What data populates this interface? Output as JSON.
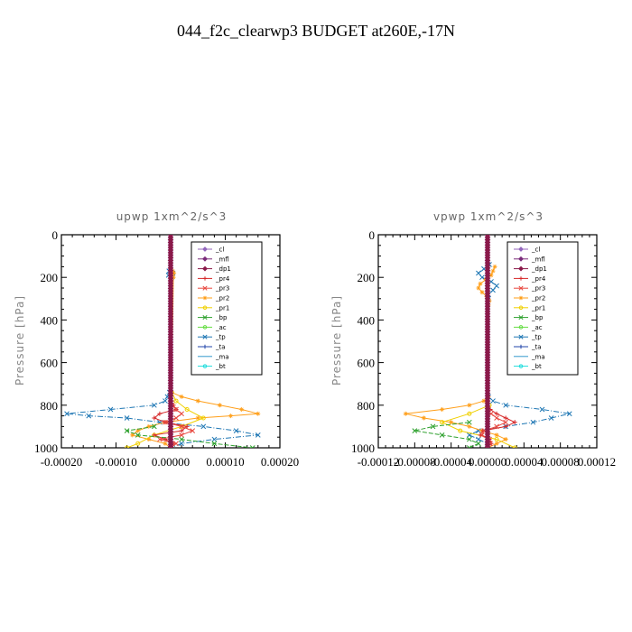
{
  "figure": {
    "title": "044_f2c_clearwp3  BUDGET at260E,-17N"
  },
  "legend_entries": [
    {
      "name": "_cl",
      "color": "#9467bd",
      "marker": "diamond"
    },
    {
      "name": "_mfl",
      "color": "#7b2d7b",
      "marker": "diamond"
    },
    {
      "name": "_dp1",
      "color": "#8b1a4a",
      "marker": "diamond"
    },
    {
      "name": "_pr4",
      "color": "#d62728",
      "marker": "plus"
    },
    {
      "name": "_pr3",
      "color": "#e8483f",
      "marker": "x"
    },
    {
      "name": "_pr2",
      "color": "#ff9f1a",
      "marker": "star"
    },
    {
      "name": "_pr1",
      "color": "#f0d000",
      "marker": "circle"
    },
    {
      "name": "_bp",
      "color": "#2ca02c",
      "marker": "x"
    },
    {
      "name": "_ac",
      "color": "#66dd44",
      "marker": "circle"
    },
    {
      "name": "_tp",
      "color": "#1f77b4",
      "marker": "x"
    },
    {
      "name": "_ta",
      "color": "#2244aa",
      "marker": "plus"
    },
    {
      "name": "_ma",
      "color": "#3399cc",
      "marker": "none"
    },
    {
      "name": "_bt",
      "color": "#22dddd",
      "marker": "circle"
    }
  ],
  "chart_data": [
    {
      "type": "line",
      "title": "upwp   1xm^2/s^3",
      "ylabel": "Pressure [hPa]",
      "xlabel": "",
      "xlim": [
        -0.0002,
        0.0002
      ],
      "ylim": [
        1000,
        0
      ],
      "y_inverted": true,
      "xtick_labels": [
        "-0.00020",
        "-0.00010",
        "0.00000",
        "0.00010",
        "0.00020"
      ],
      "xtick_values": [
        -0.0002,
        -0.0001,
        0,
        0.0001,
        0.0002
      ],
      "ytick_labels": [
        "0",
        "200",
        "400",
        "600",
        "800",
        "1000"
      ],
      "ytick_values": [
        0,
        200,
        400,
        600,
        800,
        1000
      ],
      "legend": "top-right",
      "series": [
        {
          "name": "_tp",
          "y": [
            170,
            180,
            190,
            200,
            740,
            760,
            780,
            800,
            820,
            840,
            850,
            860,
            880,
            900,
            920,
            940,
            960,
            980,
            1000
          ],
          "x": [
            -3e-06,
            4e-06,
            -4e-06,
            2e-06,
            -2e-06,
            -6e-06,
            -1e-05,
            -3e-05,
            -0.00011,
            -0.00019,
            -0.00015,
            -8e-05,
            -2e-05,
            6e-05,
            0.00012,
            0.00016,
            8e-05,
            2e-05,
            0
          ]
        },
        {
          "name": "_pr2",
          "y": [
            170,
            180,
            190,
            200,
            740,
            760,
            780,
            800,
            820,
            840,
            850,
            860,
            880,
            900,
            920,
            940,
            960,
            980,
            1000
          ],
          "x": [
            4e-06,
            6e-06,
            3e-06,
            5e-06,
            2e-06,
            2e-05,
            5e-05,
            9e-05,
            0.00013,
            0.00016,
            0.00011,
            5e-05,
            -1e-05,
            -4e-05,
            -6e-05,
            -7e-05,
            -4e-05,
            -1e-05,
            0
          ]
        },
        {
          "name": "_pr1",
          "y": [
            740,
            780,
            820,
            860,
            900,
            940,
            980,
            1000
          ],
          "x": [
            2e-06,
            1e-05,
            3e-05,
            6e-05,
            2e-05,
            -3e-05,
            -6e-05,
            -8e-05
          ]
        },
        {
          "name": "_pr4",
          "y": [
            780,
            800,
            820,
            840,
            860,
            880,
            900,
            920,
            940,
            960,
            980,
            1000
          ],
          "x": [
            2e-06,
            5e-06,
            1e-05,
            -2e-05,
            -3e-05,
            -1e-05,
            3e-05,
            2e-05,
            -3e-05,
            -1e-05,
            5e-06,
            0
          ]
        },
        {
          "name": "_pr3",
          "y": [
            800,
            820,
            840,
            860,
            880,
            900,
            920,
            940,
            960,
            980,
            1000
          ],
          "x": [
            3e-06,
            1e-05,
            2e-05,
            1e-05,
            -1e-05,
            2e-05,
            4e-05,
            2e-05,
            -2e-05,
            1e-05,
            0
          ]
        },
        {
          "name": "_bp",
          "y": [
            900,
            920,
            940,
            960,
            980,
            1000
          ],
          "x": [
            -3e-05,
            -8e-05,
            -6e-05,
            2e-05,
            8e-05,
            0.00015
          ]
        },
        {
          "name": "_cl",
          "y": [
            0,
            1000
          ],
          "x": [
            0,
            0
          ]
        },
        {
          "name": "_mfl",
          "y": [
            0,
            1000
          ],
          "x": [
            0,
            0
          ]
        },
        {
          "name": "_dp1",
          "y": [
            0,
            1000
          ],
          "x": [
            0,
            0
          ]
        }
      ]
    },
    {
      "type": "line",
      "title": "vpwp   1xm^2/s^3",
      "ylabel": "Pressure [hPa]",
      "xlabel": "",
      "xlim": [
        -0.00012,
        0.00012
      ],
      "ylim": [
        1000,
        0
      ],
      "y_inverted": true,
      "xtick_labels": [
        "-0.00012",
        "-0.00008",
        "-0.00004",
        "0.00000",
        "0.00004",
        "0.00008",
        "0.00012"
      ],
      "xtick_values": [
        -0.00012,
        -8e-05,
        -4e-05,
        0,
        4e-05,
        8e-05,
        0.00012
      ],
      "ytick_labels": [
        "0",
        "200",
        "400",
        "600",
        "800",
        "1000"
      ],
      "ytick_values": [
        0,
        200,
        400,
        600,
        800,
        1000
      ],
      "legend": "top-right",
      "series": [
        {
          "name": "_tp",
          "y": [
            140,
            160,
            180,
            200,
            220,
            240,
            260,
            280,
            300,
            760,
            780,
            800,
            820,
            840,
            860,
            880,
            900,
            920,
            940,
            960,
            980,
            1000
          ],
          "x": [
            2e-06,
            -4e-06,
            -1e-05,
            -6e-06,
            4e-06,
            1e-05,
            6e-06,
            1e-06,
            1e-06,
            1e-06,
            6e-06,
            2e-05,
            6e-05,
            9e-05,
            7e-05,
            5e-05,
            2e-05,
            -1e-05,
            -2e-05,
            -1e-05,
            0,
            0
          ]
        },
        {
          "name": "_pr2",
          "y": [
            150,
            170,
            190,
            210,
            230,
            250,
            270,
            290,
            310,
            330,
            760,
            780,
            800,
            820,
            840,
            860,
            880,
            900,
            920,
            940,
            960,
            980,
            1000
          ],
          "x": [
            8e-06,
            6e-06,
            4e-06,
            -2e-06,
            -8e-06,
            -1e-05,
            -6e-06,
            -1e-06,
            2e-06,
            1e-06,
            1e-06,
            -4e-06,
            -2e-05,
            -5e-05,
            -9e-05,
            -7e-05,
            -4e-05,
            -2e-05,
            -6e-06,
            1e-05,
            2e-05,
            1e-05,
            0
          ]
        },
        {
          "name": "_pr1",
          "y": [
            800,
            840,
            880,
            920,
            960,
            1000
          ],
          "x": [
            2e-06,
            -2e-05,
            -5e-05,
            -3e-05,
            1e-05,
            3e-05
          ]
        },
        {
          "name": "_pr4",
          "y": [
            820,
            840,
            860,
            880,
            900,
            920,
            940,
            960,
            980,
            1000
          ],
          "x": [
            3e-06,
            1e-05,
            2e-05,
            3e-05,
            2e-05,
            -5e-06,
            -8e-06,
            2e-06,
            4e-06,
            0
          ]
        },
        {
          "name": "_pr3",
          "y": [
            840,
            860,
            880,
            900,
            920,
            940,
            960,
            980,
            1000
          ],
          "x": [
            4e-06,
            1e-05,
            2e-05,
            1e-05,
            -4e-06,
            -6e-06,
            2e-06,
            3e-06,
            0
          ]
        },
        {
          "name": "_bp",
          "y": [
            880,
            900,
            920,
            940,
            960,
            980,
            1000
          ],
          "x": [
            -2e-05,
            -6e-05,
            -8e-05,
            -5e-05,
            -2e-05,
            -1e-05,
            -2e-05
          ]
        },
        {
          "name": "_cl",
          "y": [
            0,
            1000
          ],
          "x": [
            0,
            0
          ]
        },
        {
          "name": "_mfl",
          "y": [
            0,
            1000
          ],
          "x": [
            0,
            0
          ]
        },
        {
          "name": "_dp1",
          "y": [
            0,
            1000
          ],
          "x": [
            0,
            0
          ]
        }
      ]
    }
  ]
}
